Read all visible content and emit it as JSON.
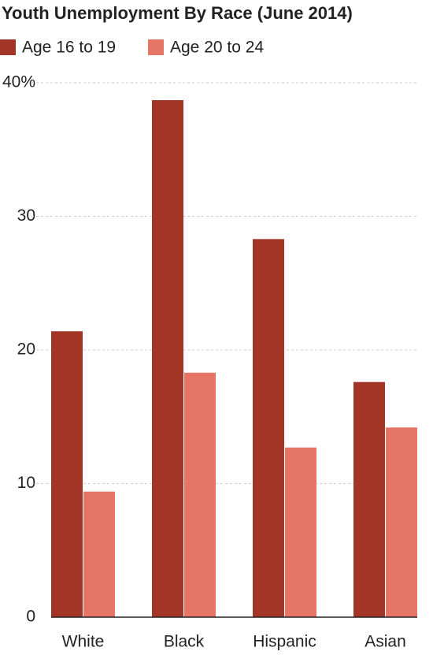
{
  "chart_data": {
    "type": "bar",
    "title": "Youth Unemployment By Race (June 2014)",
    "categories": [
      "White",
      "Black",
      "Hispanic",
      "Asian"
    ],
    "series": [
      {
        "name": "Age 16 to 19",
        "color": "#a33526",
        "values": [
          21.4,
          38.7,
          28.3,
          17.6
        ]
      },
      {
        "name": "Age 20 to 24",
        "color": "#e57565",
        "values": [
          9.4,
          18.3,
          12.7,
          14.2
        ]
      }
    ],
    "ylim": [
      0,
      40
    ],
    "yticks": [
      0,
      10,
      20,
      30,
      {
        "value": 40,
        "label": "40%"
      }
    ],
    "grid": true
  }
}
